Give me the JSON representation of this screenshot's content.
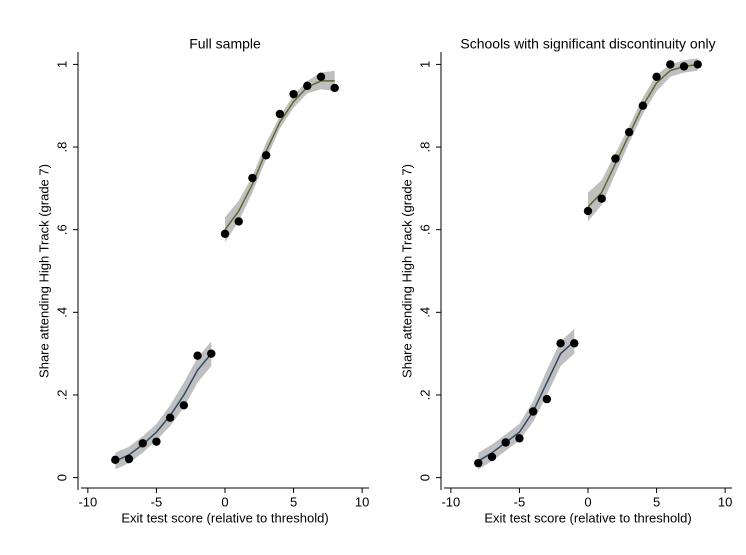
{
  "chart_data": [
    {
      "type": "scatter",
      "title": "Full sample",
      "x_label": "Exit test score (relative to threshold)",
      "y_label": "Share attending High Track (grade 7)",
      "xlim": [
        -10.5,
        10.5
      ],
      "ylim": [
        -0.03,
        1.03
      ],
      "xticks": [
        -10,
        -5,
        0,
        5,
        10
      ],
      "yticks": [
        0,
        {
          "value": 0.2,
          "label": ".2"
        },
        {
          "value": 0.4,
          "label": ".4"
        },
        {
          "value": 0.6,
          "label": ".6"
        },
        {
          "value": 0.8,
          "label": ".8"
        },
        1
      ],
      "series": [
        {
          "type": "band",
          "color": "#a9a9a9",
          "x": [
            -8,
            -7,
            -6,
            -5,
            -4,
            -3,
            -2,
            -1
          ],
          "lower": [
            0.02,
            0.035,
            0.06,
            0.09,
            0.125,
            0.17,
            0.23,
            0.27
          ],
          "upper": [
            0.06,
            0.075,
            0.1,
            0.13,
            0.175,
            0.23,
            0.29,
            0.33
          ]
        },
        {
          "type": "band",
          "color": "#a9a9a9",
          "x": [
            0,
            1,
            2,
            3,
            4,
            5,
            6,
            7,
            8
          ],
          "lower": [
            0.57,
            0.62,
            0.69,
            0.77,
            0.845,
            0.895,
            0.93,
            0.94,
            0.935
          ],
          "upper": [
            0.63,
            0.67,
            0.73,
            0.81,
            0.875,
            0.925,
            0.96,
            0.98,
            0.985
          ]
        },
        {
          "type": "line",
          "color": "#2f4a6b",
          "x": [
            -8,
            -7,
            -6,
            -5,
            -4,
            -3,
            -2,
            -1
          ],
          "values": [
            0.04,
            0.055,
            0.08,
            0.11,
            0.15,
            0.2,
            0.26,
            0.3
          ]
        },
        {
          "type": "line",
          "color": "#5a6b2f",
          "x": [
            0,
            1,
            2,
            3,
            4,
            5,
            6,
            7,
            8
          ],
          "values": [
            0.6,
            0.645,
            0.71,
            0.79,
            0.86,
            0.91,
            0.945,
            0.96,
            0.96
          ]
        },
        {
          "type": "scatter",
          "color": "#000000",
          "x": [
            -8,
            -7,
            -6,
            -5,
            -4,
            -3,
            -2,
            -1,
            0,
            1,
            2,
            3,
            4,
            5,
            6,
            7,
            8
          ],
          "values": [
            0.043,
            0.045,
            0.083,
            0.087,
            0.145,
            0.175,
            0.295,
            0.3,
            0.59,
            0.62,
            0.725,
            0.78,
            0.88,
            0.928,
            0.948,
            0.97,
            0.943
          ]
        }
      ]
    },
    {
      "type": "scatter",
      "title": "Schools with significant discontinuity only",
      "x_label": "Exit test score (relative to threshold)",
      "y_label": "Share attending High Track (grade 7)",
      "xlim": [
        -10.5,
        10.5
      ],
      "ylim": [
        -0.03,
        1.03
      ],
      "xticks": [
        -10,
        -5,
        0,
        5,
        10
      ],
      "yticks": [
        0,
        {
          "value": 0.2,
          "label": ".2"
        },
        {
          "value": 0.4,
          "label": ".4"
        },
        {
          "value": 0.6,
          "label": ".6"
        },
        {
          "value": 0.8,
          "label": ".8"
        },
        1
      ],
      "series": [
        {
          "type": "band",
          "color": "#a9a9a9",
          "x": [
            -8,
            -7,
            -6,
            -5,
            -4,
            -3,
            -2,
            -1
          ],
          "lower": [
            0.02,
            0.04,
            0.065,
            0.09,
            0.135,
            0.2,
            0.27,
            0.3
          ],
          "upper": [
            0.06,
            0.08,
            0.105,
            0.13,
            0.185,
            0.26,
            0.33,
            0.36
          ]
        },
        {
          "type": "band",
          "color": "#a9a9a9",
          "x": [
            0,
            1,
            2,
            3,
            4,
            5,
            6,
            7,
            8
          ],
          "lower": [
            0.62,
            0.66,
            0.735,
            0.81,
            0.88,
            0.935,
            0.97,
            0.98,
            0.985
          ],
          "upper": [
            0.69,
            0.72,
            0.785,
            0.85,
            0.92,
            0.975,
            1.0,
            1.01,
            1.015
          ]
        },
        {
          "type": "line",
          "color": "#2f4a6b",
          "x": [
            -8,
            -7,
            -6,
            -5,
            -4,
            -3,
            -2,
            -1
          ],
          "values": [
            0.04,
            0.06,
            0.085,
            0.11,
            0.16,
            0.23,
            0.3,
            0.33
          ]
        },
        {
          "type": "line",
          "color": "#5a6b2f",
          "x": [
            0,
            1,
            2,
            3,
            4,
            5,
            6,
            7,
            8
          ],
          "values": [
            0.655,
            0.69,
            0.76,
            0.83,
            0.9,
            0.955,
            0.985,
            0.995,
            1.0
          ]
        },
        {
          "type": "scatter",
          "color": "#000000",
          "x": [
            -8,
            -7,
            -6,
            -5,
            -4,
            -3,
            -2,
            -1,
            0,
            1,
            2,
            3,
            4,
            5,
            6,
            7,
            8
          ],
          "values": [
            0.035,
            0.05,
            0.085,
            0.095,
            0.16,
            0.19,
            0.325,
            0.325,
            0.645,
            0.675,
            0.772,
            0.836,
            0.9,
            0.97,
            1.0,
            0.995,
            1.0
          ]
        }
      ]
    }
  ]
}
